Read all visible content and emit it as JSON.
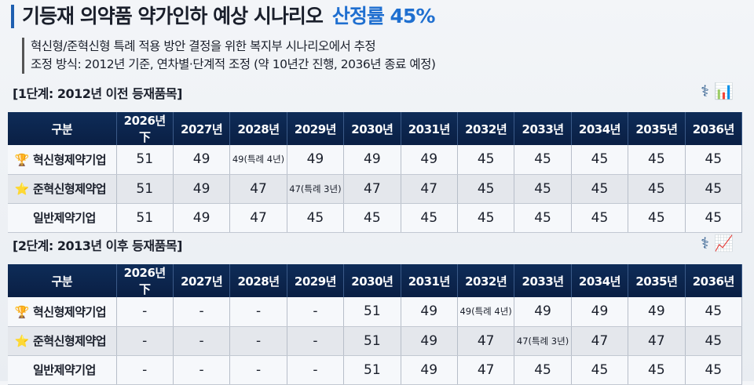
{
  "title": {
    "main": "기등재 의약품 약가인하 예상 시나리오",
    "accent": "산정률 45%"
  },
  "subtitle": [
    "혁신형/준혁신형 특례 적용 방안 결정을 위한 복지부 시나리오에서 추정",
    "조정 방식: 2012년 기준, 연차별·단계적 조정 (약 10년간 진행, 2036년 종료 예정)"
  ],
  "accent_color": "#1f6fd0",
  "tables": [
    {
      "label": "[1단계: 2012년 이전 등재품목]",
      "headers": [
        "구분",
        "2026년 下",
        "2027년",
        "2028년",
        "2029년",
        "2030년",
        "2031년",
        "2032년",
        "2033년",
        "2034년",
        "2035년",
        "2036년"
      ],
      "rows": [
        {
          "icon": "trophy-icon",
          "name": "혁신형제약기업",
          "values": [
            "51",
            "49",
            "49(특례 4년)",
            "49",
            "49",
            "49",
            "45",
            "45",
            "45",
            "45",
            "45"
          ]
        },
        {
          "icon": "star-icon",
          "name": "준혁신형제약업",
          "values": [
            "51",
            "49",
            "47",
            "47(특례 3년)",
            "47",
            "47",
            "45",
            "45",
            "45",
            "45",
            "45"
          ]
        },
        {
          "icon": "",
          "name": "일반제약기업",
          "values": [
            "51",
            "49",
            "47",
            "45",
            "45",
            "45",
            "45",
            "45",
            "45",
            "45",
            "45"
          ]
        }
      ]
    },
    {
      "label": "[2단계: 2013년 이후 등재품목]",
      "headers": [
        "구분",
        "2026년 下",
        "2027년",
        "2028년",
        "2029년",
        "2030년",
        "2031년",
        "2032년",
        "2033년",
        "2034년",
        "2035년",
        "2036년"
      ],
      "rows": [
        {
          "icon": "trophy-icon",
          "name": "혁신형제약기업",
          "values": [
            "-",
            "-",
            "-",
            "-",
            "51",
            "49",
            "49(특례 4년)",
            "49",
            "49",
            "49",
            "45"
          ]
        },
        {
          "icon": "star-icon",
          "name": "준혁신형제약업",
          "values": [
            "-",
            "-",
            "-",
            "-",
            "51",
            "49",
            "47",
            "47(특례 3년)",
            "47",
            "47",
            "45"
          ]
        },
        {
          "icon": "",
          "name": "일반제약기업",
          "values": [
            "-",
            "-",
            "-",
            "-",
            "51",
            "49",
            "47",
            "45",
            "45",
            "45",
            "45"
          ]
        }
      ]
    }
  ]
}
